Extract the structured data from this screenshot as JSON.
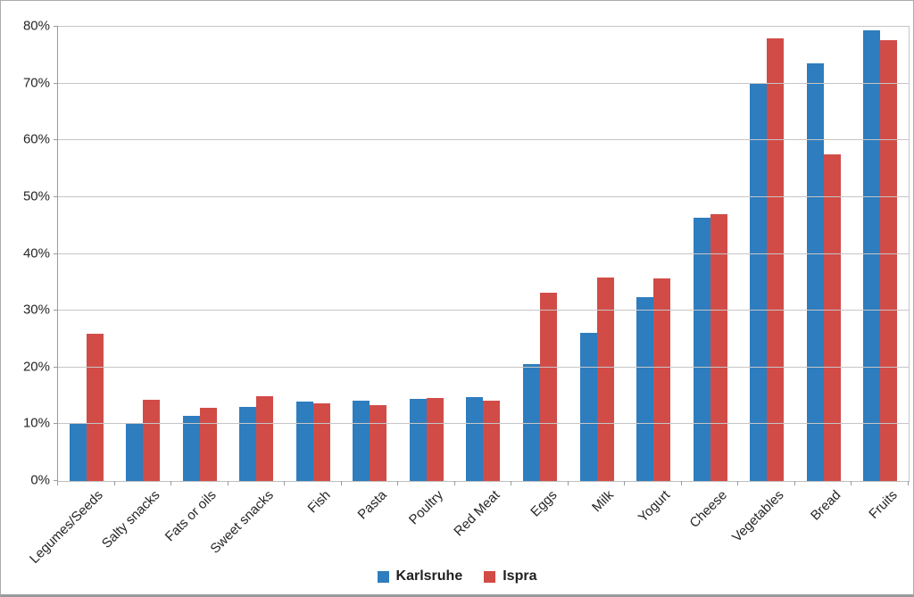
{
  "chart_data": {
    "type": "bar",
    "title": "",
    "categories": [
      "Legumes/Seeds",
      "Salty snacks",
      "Fats or oils",
      "Sweet snacks",
      "Fish",
      "Pasta",
      "Poultry",
      "Red Meat",
      "Eggs",
      "Milk",
      "Yogurt",
      "Cheese",
      "Vegetables",
      "Bread",
      "Fruits"
    ],
    "series": [
      {
        "name": "Karlsruhe",
        "color": "#2E7DBE",
        "values": [
          10.0,
          10.1,
          11.4,
          13.1,
          14.0,
          14.2,
          14.5,
          14.8,
          20.6,
          26.1,
          32.4,
          46.3,
          69.9,
          73.5,
          79.3
        ]
      },
      {
        "name": "Ispra",
        "color": "#D24C47",
        "values": [
          26.0,
          14.3,
          12.9,
          15.0,
          13.6,
          13.4,
          14.6,
          14.2,
          33.2,
          35.8,
          35.7,
          47.0,
          78.0,
          57.5,
          77.6
        ]
      }
    ],
    "xlabel": "",
    "ylabel": "",
    "ylim": [
      0,
      80
    ],
    "ytick_step": 10,
    "ytick_labels": [
      "0%",
      "10%",
      "20%",
      "30%",
      "40%",
      "50%",
      "60%",
      "70%",
      "80%"
    ],
    "grid": true,
    "legend_position": "bottom-center",
    "x_label_rotation_deg": -45
  },
  "colors": {
    "gridline": "#C6C6C6",
    "axis": "#9A9A9A",
    "text": "#262626",
    "figure_border": "#ABABAB",
    "background": "#FFFFFF"
  }
}
